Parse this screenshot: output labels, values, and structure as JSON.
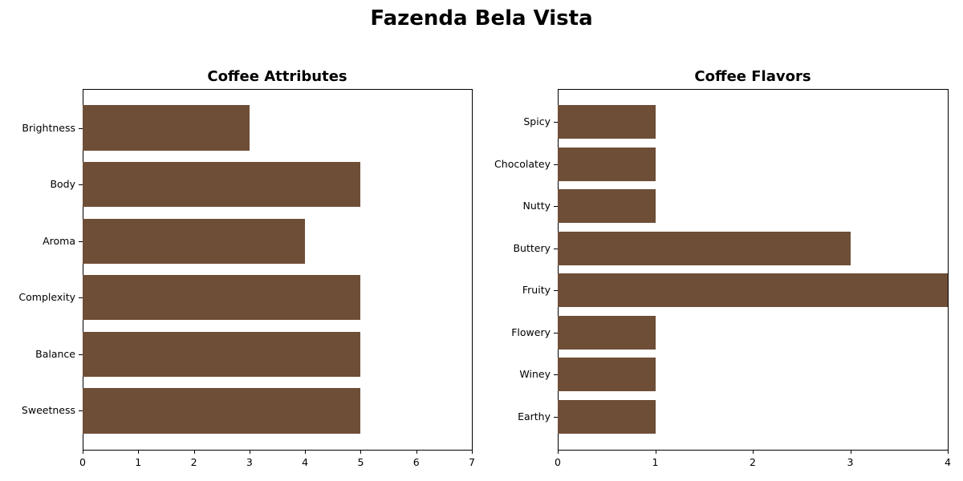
{
  "title": "Fazenda Bela Vista",
  "bar_color": "#6F4E37",
  "chart_data": [
    {
      "type": "bar",
      "orientation": "horizontal",
      "title": "Coffee Attributes",
      "categories": [
        "Brightness",
        "Body",
        "Aroma",
        "Complexity",
        "Balance",
        "Sweetness"
      ],
      "values": [
        3,
        5,
        4,
        5,
        5,
        5
      ],
      "xlabel": "",
      "ylabel": "",
      "xlim": [
        0,
        7
      ],
      "xticks": [
        "0",
        "1",
        "2",
        "3",
        "4",
        "5",
        "6",
        "7"
      ],
      "grid": false
    },
    {
      "type": "bar",
      "orientation": "horizontal",
      "title": "Coffee Flavors",
      "categories": [
        "Spicy",
        "Chocolatey",
        "Nutty",
        "Buttery",
        "Fruity",
        "Flowery",
        "Winey",
        "Earthy"
      ],
      "values": [
        1,
        1,
        1,
        3,
        4,
        1,
        1,
        1
      ],
      "xlabel": "",
      "ylabel": "",
      "xlim": [
        0,
        4
      ],
      "xticks": [
        "0",
        "1",
        "2",
        "3",
        "4"
      ],
      "grid": false
    }
  ]
}
